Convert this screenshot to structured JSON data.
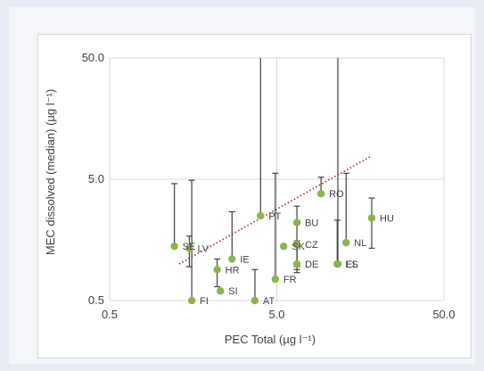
{
  "chart_data": {
    "type": "scatter",
    "xlabel": "PEC Total (µg l⁻¹)",
    "ylabel": "MEC dissolved (median) (µg l⁻¹)",
    "xscale": "log",
    "yscale": "log",
    "xlim": [
      0.5,
      50
    ],
    "ylim": [
      0.5,
      50
    ],
    "x_ticks": [
      "0.5",
      "5.0",
      "50.0"
    ],
    "y_ticks": [
      "0.5",
      "5.0",
      "50.0"
    ],
    "grid": true,
    "points": [
      {
        "label": "SE",
        "x": 1.22,
        "y": 1.4,
        "err_low": 1.4,
        "err_high": 4.6
      },
      {
        "label": "LV",
        "x": 1.5,
        "y": 1.35,
        "err_low": 0.95,
        "err_high": 1.7
      },
      {
        "label": "FI",
        "x": 1.55,
        "y": 0.5,
        "err_low": 0.5,
        "err_high": 4.9
      },
      {
        "label": "HR",
        "x": 2.2,
        "y": 0.9,
        "err_low": 0.65,
        "err_high": 1.1
      },
      {
        "label": "SI",
        "x": 2.3,
        "y": 0.6,
        "err_low": 0.6,
        "err_high": 0.6
      },
      {
        "label": "IE",
        "x": 2.7,
        "y": 1.1,
        "err_low": 1.1,
        "err_high": 2.7
      },
      {
        "label": "AT",
        "x": 3.7,
        "y": 0.5,
        "err_low": 0.5,
        "err_high": 0.9
      },
      {
        "label": "PT",
        "x": 4.0,
        "y": 2.5,
        "err_low": 2.5,
        "err_high": 50
      },
      {
        "label": "FR",
        "x": 4.9,
        "y": 0.75,
        "err_low": 0.75,
        "err_high": 5.6
      },
      {
        "label": "SK",
        "x": 5.5,
        "y": 1.4,
        "err_low": 1.4,
        "err_high": 1.45
      },
      {
        "label": "CZ",
        "x": 6.6,
        "y": 1.45,
        "err_low": 0.9,
        "err_high": 1.5
      },
      {
        "label": "BU",
        "x": 6.6,
        "y": 2.2,
        "err_low": 0.95,
        "err_high": 3.0
      },
      {
        "label": "DE",
        "x": 6.6,
        "y": 1.0,
        "err_low": 0.85,
        "err_high": 1.55
      },
      {
        "label": "RO",
        "x": 9.2,
        "y": 3.8,
        "err_low": 3.8,
        "err_high": 5.2
      },
      {
        "label": "ES",
        "x": 11.5,
        "y": 1.0,
        "err_low": 1.0,
        "err_high": 2.3
      },
      {
        "label": "EL",
        "x": 11.6,
        "y": 1.0,
        "err_low": 1.0,
        "err_high": 50
      },
      {
        "label": "NL",
        "x": 13.0,
        "y": 1.5,
        "err_low": 1.5,
        "err_high": 5.6
      },
      {
        "label": "HU",
        "x": 18.5,
        "y": 2.4,
        "err_low": 1.35,
        "err_high": 3.5
      }
    ],
    "trendline": {
      "style": "dotted",
      "x": [
        1.3,
        18.5
      ],
      "y": [
        1.0,
        7.8
      ]
    },
    "colors": {
      "marker": "#8db34a",
      "errorbar": "#404040",
      "trend": "#9c2a3c",
      "grid": "#d9d9d9"
    }
  }
}
